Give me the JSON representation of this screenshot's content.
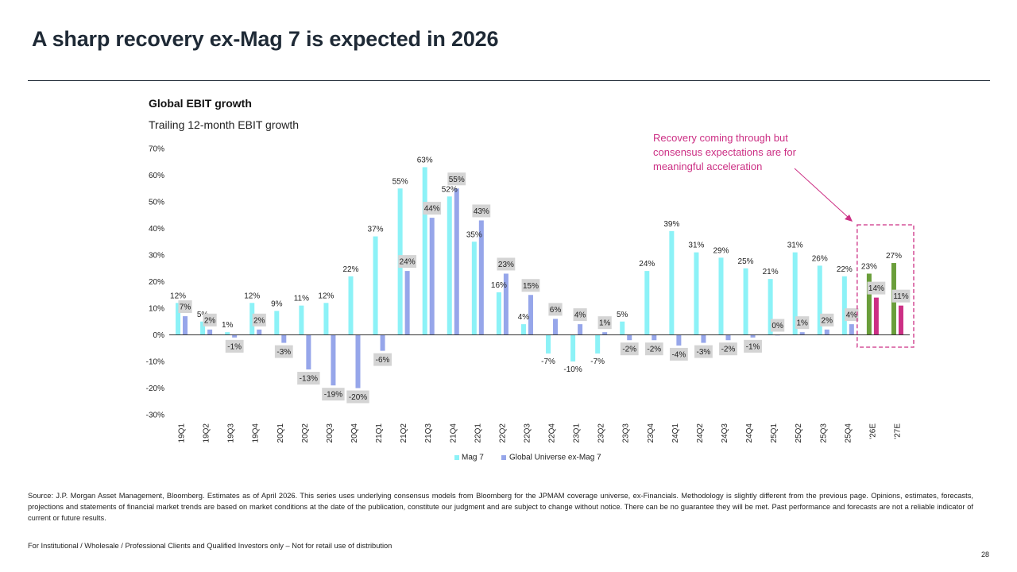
{
  "slide": {
    "title": "A sharp recovery ex-Mag 7 is expected in 2026",
    "source": "Source: J.P. Morgan Asset Management, Bloomberg. Estimates as of April 2026. This series uses underlying consensus models from Bloomberg for the JPMAM coverage universe, ex-Financials. Methodology is slightly different from the previous page. Opinions, estimates, forecasts, projections and statements of financial market trends are based on market conditions at the date of the publication, constitute our judgment and are subject to change without notice. There can be no guarantee they will be met. Past performance and forecasts are not a reliable indicator of current or future results.",
    "disclaimer": "For Institutional / Wholesale / Professional Clients and Qualified Investors only – Not for retail use of distribution",
    "page_number": "28"
  },
  "callout": {
    "lines": [
      "Recovery coming through but",
      "consensus expectations are for",
      "meaningful acceleration"
    ]
  },
  "colors": {
    "mag7": "#8cf2f7",
    "ex_mag7": "#96a6ea",
    "mag7_estimate": "#6a9e3a",
    "ex_mag7_estimate": "#cc2f84",
    "callout": "#cc2f84",
    "label_box": "#d4d4d4"
  },
  "chart_data": {
    "type": "bar",
    "title": "Global EBIT growth",
    "subtitle": "Trailing 12-month EBIT growth",
    "categories": [
      "19Q1",
      "19Q2",
      "19Q3",
      "19Q4",
      "20Q1",
      "20Q2",
      "20Q3",
      "20Q4",
      "21Q1",
      "21Q2",
      "21Q3",
      "21Q4",
      "22Q1",
      "22Q2",
      "22Q3",
      "22Q4",
      "23Q1",
      "23Q2",
      "23Q3",
      "23Q4",
      "24Q1",
      "24Q2",
      "24Q3",
      "24Q4",
      "25Q1",
      "25Q2",
      "25Q3",
      "25Q4",
      "'26E",
      "'27E"
    ],
    "series": [
      {
        "name": "Mag 7",
        "values": [
          12,
          5,
          1,
          12,
          9,
          11,
          12,
          22,
          37,
          55,
          63,
          52,
          35,
          16,
          4,
          -7,
          -10,
          -7,
          5,
          24,
          39,
          31,
          29,
          25,
          21,
          31,
          26,
          22,
          23,
          27
        ],
        "labels": [
          "12%",
          "5%",
          "1%",
          "12%",
          "9%",
          "11%",
          "12%",
          "22%",
          "37%",
          "55%",
          "63%",
          "52%",
          "35%",
          "16%",
          "4%",
          "-7%",
          "-10%",
          "-7%",
          "5%",
          "24%",
          "39%",
          "31%",
          "29%",
          "25%",
          "21%",
          "31%",
          "26%",
          "22%",
          "23%",
          "27%"
        ]
      },
      {
        "name": "Global Universe ex-Mag 7",
        "values": [
          7,
          2,
          -1,
          2,
          -3,
          -13,
          -19,
          -20,
          -6,
          24,
          44,
          55,
          43,
          23,
          15,
          6,
          4,
          1,
          -2,
          -2,
          -4,
          -3,
          -2,
          -1,
          0,
          1,
          2,
          4,
          14,
          11
        ],
        "labels": [
          "7%",
          "2%",
          "-1%",
          "2%",
          "-3%",
          "-13%",
          "-19%",
          "-20%",
          "-6%",
          "24%",
          "44%",
          "55%",
          "43%",
          "23%",
          "15%",
          "6%",
          "4%",
          "1%",
          "-2%",
          "-2%",
          "-4%",
          "-3%",
          "-2%",
          "-1%",
          "0%",
          "1%",
          "2%",
          "4%",
          "14%",
          "11%"
        ]
      }
    ],
    "estimate_categories": [
      "'26E",
      "'27E"
    ],
    "ylim": [
      -30,
      70
    ],
    "yticks": [
      -30,
      -20,
      -10,
      0,
      10,
      20,
      30,
      40,
      50,
      60,
      70
    ],
    "ytick_labels": [
      "-30%",
      "-20%",
      "-10%",
      "0%",
      "10%",
      "20%",
      "30%",
      "40%",
      "50%",
      "60%",
      "70%"
    ],
    "legend_position": "bottom",
    "grid": false
  }
}
